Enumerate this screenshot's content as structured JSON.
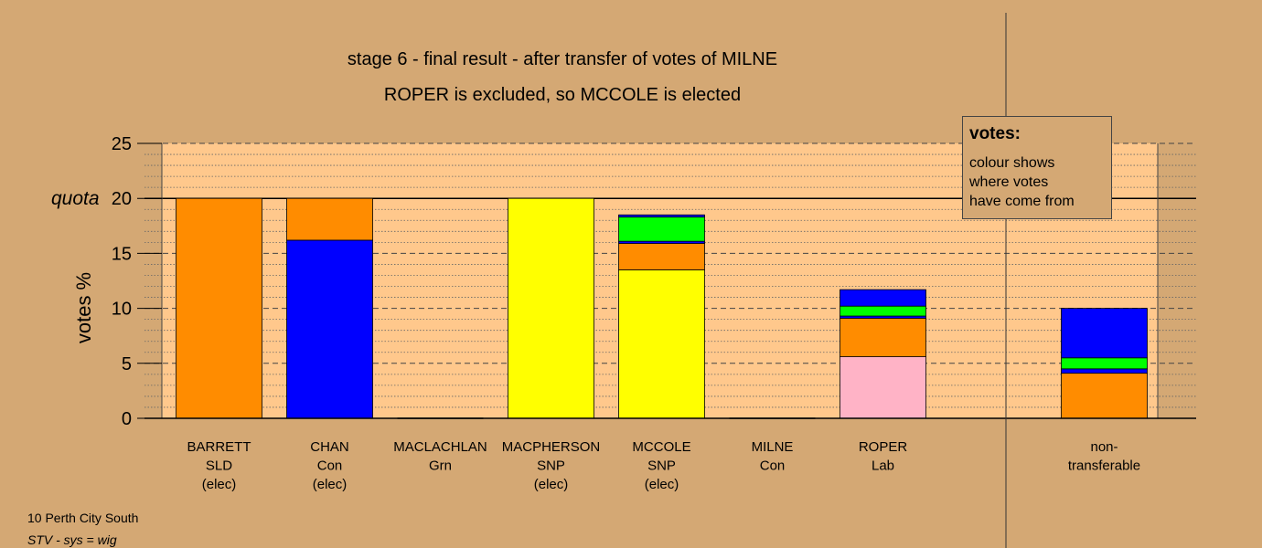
{
  "chart_data": {
    "type": "bar",
    "stacked": true,
    "title": "stage 6 - final result - after transfer of votes of MILNE",
    "subtitle": "ROPER is excluded, so MCCOLE is elected",
    "ylabel": "votes %",
    "ylim": [
      0,
      25
    ],
    "yticks": [
      0,
      5,
      10,
      15,
      20,
      25
    ],
    "grid": "dotted minor, dashed major",
    "quota": {
      "label": "quota",
      "value": 20
    },
    "colors": {
      "SLD": "#ff8c00",
      "Con": "#0000ff",
      "Grn": "#00ff00",
      "SNP": "#ffff00",
      "Lab": "#ffb3c6",
      "plot_bg": "#ffc88c",
      "page_bg": "#d4a874"
    },
    "categories": [
      {
        "lines": [
          "BARRETT",
          "SLD",
          "(elec)"
        ],
        "segments": [
          {
            "from": "SLD",
            "value": 20
          }
        ]
      },
      {
        "lines": [
          "CHAN",
          "Con",
          "(elec)"
        ],
        "segments": [
          {
            "from": "Con",
            "value": 16.2
          },
          {
            "from": "SLD",
            "value": 3.8
          }
        ]
      },
      {
        "lines": [
          "MACLACHLAN",
          "Grn"
        ],
        "segments": []
      },
      {
        "lines": [
          "MACPHERSON",
          "SNP",
          "(elec)"
        ],
        "segments": [
          {
            "from": "SNP",
            "value": 20
          }
        ]
      },
      {
        "lines": [
          "MCCOLE",
          "SNP",
          "(elec)"
        ],
        "segments": [
          {
            "from": "SNP",
            "value": 13.5
          },
          {
            "from": "SLD",
            "value": 2.4
          },
          {
            "from": "Con",
            "value": 0.2
          },
          {
            "from": "Grn",
            "value": 2.2
          },
          {
            "from": "Con",
            "value": 0.2
          }
        ]
      },
      {
        "lines": [
          "MILNE",
          "Con"
        ],
        "segments": []
      },
      {
        "lines": [
          "ROPER",
          "Lab"
        ],
        "segments": [
          {
            "from": "Lab",
            "value": 5.6
          },
          {
            "from": "SLD",
            "value": 3.5
          },
          {
            "from": "Con",
            "value": 0.2
          },
          {
            "from": "Grn",
            "value": 0.9
          },
          {
            "from": "Con",
            "value": 1.5
          }
        ]
      },
      {
        "lines": [
          "non-",
          "transferable"
        ],
        "separate": true,
        "segments": [
          {
            "from": "SLD",
            "value": 4.1
          },
          {
            "from": "Con",
            "value": 0.4
          },
          {
            "from": "Grn",
            "value": 1.0
          },
          {
            "from": "Con",
            "value": 4.5
          }
        ]
      }
    ]
  },
  "legend": {
    "heading": "votes:",
    "body": "colour shows\nwhere votes\nhave come from"
  },
  "footer": {
    "line1": "10 Perth City South",
    "line2": "STV - sys = wig"
  }
}
